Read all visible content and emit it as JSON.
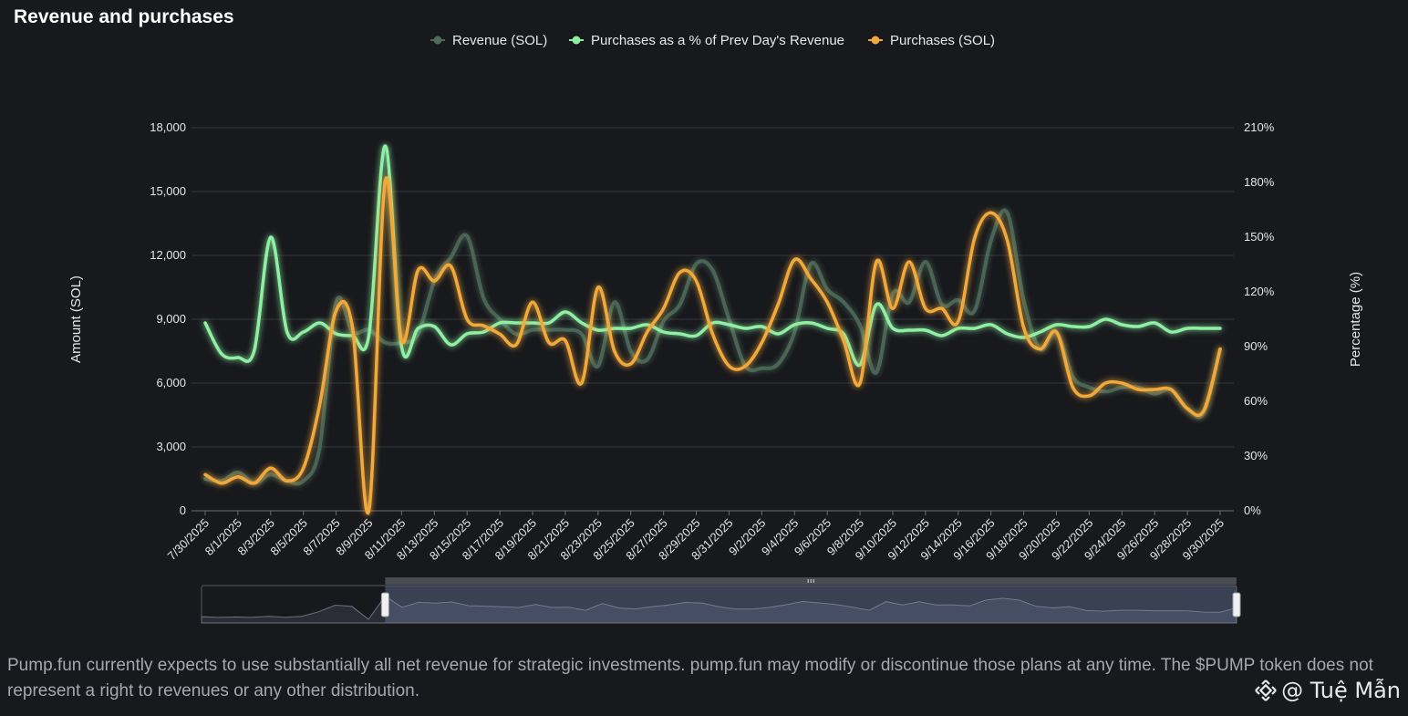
{
  "title": "Revenue and purchases",
  "footnote": "Pump.fun currently expects to use substantially all net revenue for strategic investments. pump.fun may modify or discontinue those plans at any time. The $PUMP token does not represent a right to revenues or any other distribution.",
  "watermark": {
    "icon": "binance-diamond-icon",
    "text": "@ Tuệ Mẫn"
  },
  "colors": {
    "revenue": "#4d6b58",
    "percent": "#8ff0a4",
    "purchases": "#f2a93b",
    "grid": "#34363d",
    "axis_text": "#e6e6e6"
  },
  "chart_data": {
    "type": "line",
    "title": "Revenue and purchases",
    "xlabel": "",
    "ylabel": "Amount (SOL)",
    "y2label": "Percentage (%)",
    "ylim": [
      0,
      18000
    ],
    "y2lim": [
      0,
      210
    ],
    "y_ticks": [
      "0",
      "3,000",
      "6,000",
      "9,000",
      "12,000",
      "15,000",
      "18,000"
    ],
    "y2_ticks": [
      "0%",
      "30%",
      "60%",
      "90%",
      "120%",
      "150%",
      "180%",
      "210%"
    ],
    "grid": true,
    "legend_position": "top-center",
    "x": [
      "7/30/2025",
      "7/31/2025",
      "8/1/2025",
      "8/2/2025",
      "8/3/2025",
      "8/4/2025",
      "8/5/2025",
      "8/6/2025",
      "8/7/2025",
      "8/8/2025",
      "8/9/2025",
      "8/10/2025",
      "8/11/2025",
      "8/12/2025",
      "8/13/2025",
      "8/14/2025",
      "8/15/2025",
      "8/16/2025",
      "8/17/2025",
      "8/18/2025",
      "8/19/2025",
      "8/20/2025",
      "8/21/2025",
      "8/22/2025",
      "8/23/2025",
      "8/24/2025",
      "8/25/2025",
      "8/26/2025",
      "8/27/2025",
      "8/28/2025",
      "8/29/2025",
      "8/30/2025",
      "8/31/2025",
      "9/1/2025",
      "9/2/2025",
      "9/3/2025",
      "9/4/2025",
      "9/5/2025",
      "9/6/2025",
      "9/7/2025",
      "9/8/2025",
      "9/9/2025",
      "9/10/2025",
      "9/11/2025",
      "9/12/2025",
      "9/13/2025",
      "9/14/2025",
      "9/15/2025",
      "9/16/2025",
      "9/17/2025",
      "9/18/2025",
      "9/19/2025",
      "9/20/2025",
      "9/21/2025",
      "9/22/2025",
      "9/23/2025",
      "9/24/2025",
      "9/25/2025",
      "9/26/2025",
      "9/27/2025",
      "9/28/2025",
      "9/29/2025",
      "9/30/2025"
    ],
    "x_tick_labels": [
      "7/30/2025",
      "8/1/2025",
      "8/3/2025",
      "8/5/2025",
      "8/7/2025",
      "8/9/2025",
      "8/11/2025",
      "8/13/2025",
      "8/15/2025",
      "8/17/2025",
      "8/19/2025",
      "8/21/2025",
      "8/23/2025",
      "8/25/2025",
      "8/27/2025",
      "8/29/2025",
      "8/31/2025",
      "9/2/2025",
      "9/4/2025",
      "9/6/2025",
      "9/8/2025",
      "9/10/2025",
      "9/12/2025",
      "9/14/2025",
      "9/16/2025",
      "9/18/2025",
      "9/20/2025",
      "9/22/2025",
      "9/24/2025",
      "9/26/2025",
      "9/28/2025",
      "9/30/2025"
    ],
    "series": [
      {
        "name": "Revenue (SOL)",
        "axis": "left",
        "values": [
          1500,
          1400,
          1800,
          1300,
          1700,
          1400,
          1400,
          3000,
          9800,
          8400,
          8500,
          7900,
          7900,
          8300,
          10800,
          11900,
          12900,
          10000,
          9000,
          8300,
          8500,
          8500,
          8500,
          8300,
          6800,
          9800,
          7500,
          7100,
          8900,
          9700,
          11600,
          11300,
          9000,
          6800,
          6700,
          6900,
          8400,
          11600,
          10400,
          9800,
          8700,
          6500,
          10200,
          9800,
          11700,
          9700,
          9900,
          9400,
          12700,
          14000,
          9900,
          7600,
          8400,
          6300,
          5800,
          5600,
          5800,
          5800,
          5500,
          5700,
          4800,
          4600,
          7600
        ]
      },
      {
        "name": "Purchases as a % of Prev Day's Revenue",
        "axis": "right",
        "values": [
          103,
          86,
          84,
          88,
          150,
          98,
          98,
          103,
          97,
          96,
          96,
          200,
          90,
          100,
          101,
          91,
          97,
          98,
          103,
          103,
          103,
          103,
          109,
          103,
          99,
          100,
          100,
          102,
          98,
          97,
          96,
          103,
          102,
          100,
          101,
          97,
          102,
          103,
          100,
          97,
          80,
          113,
          100,
          99,
          99,
          96,
          100,
          100,
          102,
          97,
          95,
          98,
          102,
          101,
          101,
          105,
          102,
          101,
          103,
          98,
          100,
          100,
          100
        ]
      },
      {
        "name": "Purchases (SOL)",
        "axis": "left",
        "values": [
          1700,
          1300,
          1600,
          1300,
          2000,
          1400,
          2000,
          5000,
          9400,
          8600,
          0,
          15500,
          8000,
          11300,
          10800,
          11500,
          9000,
          8700,
          8300,
          7800,
          9800,
          7900,
          8000,
          6000,
          10500,
          7500,
          6900,
          8400,
          9500,
          11200,
          10800,
          8300,
          6800,
          6800,
          7900,
          9700,
          11800,
          10900,
          9800,
          8000,
          6000,
          11700,
          9500,
          11700,
          9500,
          9500,
          8900,
          12800,
          14000,
          12700,
          8600,
          7600,
          8400,
          5800,
          5400,
          6000,
          6000,
          5700,
          5700,
          5700,
          4800,
          4700,
          7600
        ]
      }
    ],
    "zoom": {
      "start_date": "8/10/2025",
      "end_date": "9/30/2025"
    }
  }
}
